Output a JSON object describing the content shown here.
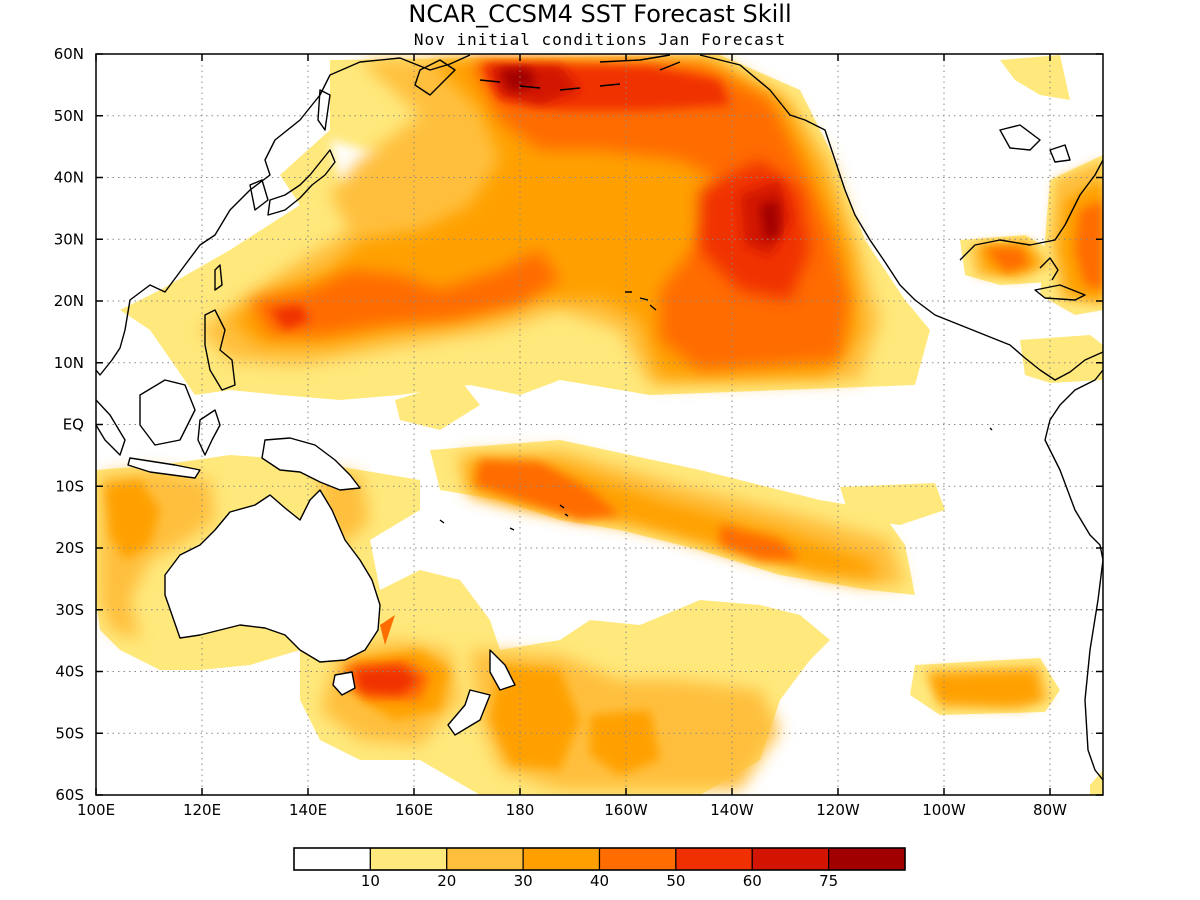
{
  "title": "NCAR_CCSM4 SST Forecast Skill",
  "subtitle": "Nov initial conditions  Jan Forecast",
  "colors": {
    "c0": "#ffffff",
    "c1": "#ffe87c",
    "c2": "#ffbf3c",
    "c3": "#ffa000",
    "c4": "#ff6c00",
    "c5": "#f03000",
    "c6": "#d21400",
    "c7": "#a00000"
  },
  "chart_data": {
    "type": "heatmap",
    "map_projection": "cylindrical lat-lon",
    "xlim": [
      100,
      290
    ],
    "ylim": [
      -60,
      60
    ],
    "lon_ticks": [
      {
        "lon": 100,
        "label": "100E"
      },
      {
        "lon": 120,
        "label": "120E"
      },
      {
        "lon": 140,
        "label": "140E"
      },
      {
        "lon": 160,
        "label": "160E"
      },
      {
        "lon": 180,
        "label": "180"
      },
      {
        "lon": 200,
        "label": "160W"
      },
      {
        "lon": 220,
        "label": "140W"
      },
      {
        "lon": 240,
        "label": "120W"
      },
      {
        "lon": 260,
        "label": "100W"
      },
      {
        "lon": 280,
        "label": "80W"
      }
    ],
    "lat_ticks": [
      {
        "lat": 60,
        "label": "60N"
      },
      {
        "lat": 50,
        "label": "50N"
      },
      {
        "lat": 40,
        "label": "40N"
      },
      {
        "lat": 30,
        "label": "30N"
      },
      {
        "lat": 20,
        "label": "20N"
      },
      {
        "lat": 10,
        "label": "10N"
      },
      {
        "lat": 0,
        "label": "EQ"
      },
      {
        "lat": -10,
        "label": "10S"
      },
      {
        "lat": -20,
        "label": "20S"
      },
      {
        "lat": -30,
        "label": "30S"
      },
      {
        "lat": -40,
        "label": "40S"
      },
      {
        "lat": -50,
        "label": "50S"
      },
      {
        "lat": -60,
        "label": "60S"
      }
    ],
    "grid": true,
    "colorbar": {
      "levels": [
        "10",
        "20",
        "30",
        "40",
        "50",
        "60",
        "75"
      ],
      "position": "bottom"
    },
    "skill_regions": [
      {
        "name": "north-pacific",
        "level": 1,
        "lon": [
          152,
          250
        ],
        "lat": [
          12,
          59
        ]
      },
      {
        "name": "north-pacific-core",
        "level": 4,
        "lon": [
          175,
          235
        ],
        "lat": [
          44,
          58
        ]
      },
      {
        "name": "bering-max",
        "level": 7,
        "lon": [
          178,
          186
        ],
        "lat": [
          53,
          58
        ]
      },
      {
        "name": "northeast-pacific",
        "level": 5,
        "lon": [
          205,
          242
        ],
        "lat": [
          12,
          43
        ]
      },
      {
        "name": "northeast-pacific-max",
        "level": 7,
        "lon": [
          219,
          229
        ],
        "lat": [
          26,
          36
        ]
      },
      {
        "name": "western-tropical-north-pacific",
        "level": 3,
        "lon": [
          118,
          175
        ],
        "lat": [
          8,
          30
        ]
      },
      {
        "name": "south-equatorial-band",
        "level": 3,
        "lon": [
          162,
          245
        ],
        "lat": [
          -25,
          -4
        ]
      },
      {
        "name": "indian-ocean-west-australia",
        "level": 2,
        "lon": [
          100,
          122
        ],
        "lat": [
          -35,
          -5
        ]
      },
      {
        "name": "tasman-sea",
        "level": 4,
        "lon": [
          145,
          165
        ],
        "lat": [
          -45,
          -30
        ]
      },
      {
        "name": "southern-ocean-south-pacific",
        "level": 2,
        "lon": [
          158,
          230
        ],
        "lat": [
          -60,
          -33
        ]
      },
      {
        "name": "southeast-pacific",
        "level": 3,
        "lon": [
          252,
          277
        ],
        "lat": [
          -46,
          -36
        ]
      },
      {
        "name": "gulf-of-mexico",
        "level": 4,
        "lon": [
          262,
          272
        ],
        "lat": [
          18,
          31
        ]
      },
      {
        "name": "western-atlantic",
        "level": 4,
        "lon": [
          280,
          290
        ],
        "lat": [
          15,
          40
        ]
      }
    ]
  }
}
